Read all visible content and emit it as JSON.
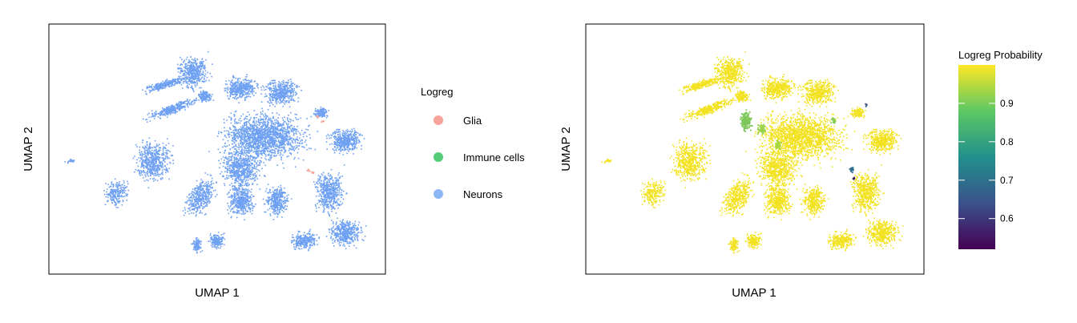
{
  "chart_data": [
    {
      "type": "scatter",
      "panel": "left",
      "xlabel": "UMAP 1",
      "ylabel": "UMAP 2",
      "legend": {
        "title": "Logreg",
        "placement": "right",
        "entries": [
          {
            "name": "Glia",
            "color": "#F8A39A"
          },
          {
            "name": "Immune cells",
            "color": "#55CC77"
          },
          {
            "name": "Neurons",
            "color": "#8DB6F7"
          }
        ]
      },
      "point_color": "#6EA0F2"
    },
    {
      "type": "scatter",
      "panel": "right",
      "xlabel": "UMAP 1",
      "ylabel": "UMAP 2",
      "colorbar": {
        "title": "Logreg Probability",
        "placement": "right",
        "range": [
          0.52,
          1.0
        ],
        "ticks": [
          "0.9",
          "0.8",
          "0.7",
          "0.6"
        ],
        "tick_values": [
          0.9,
          0.8,
          0.7,
          0.6
        ],
        "colormap": [
          "#440154",
          "#3B528B",
          "#21908C",
          "#5DC863",
          "#FDE725"
        ]
      },
      "point_color": "#F2E21F"
    }
  ]
}
